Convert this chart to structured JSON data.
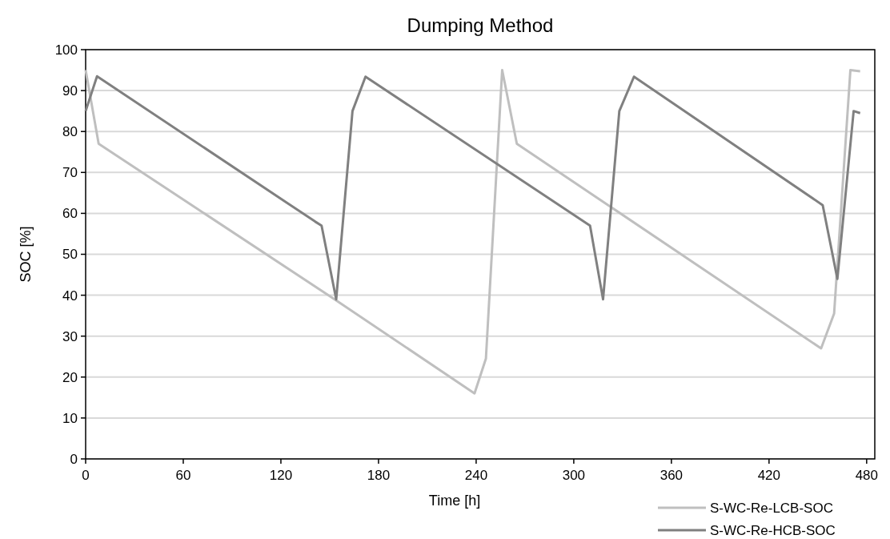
{
  "chart_data": {
    "type": "line",
    "title": "Dumping Method",
    "xlabel": "Time [h]",
    "ylabel": "SOC [%]",
    "xlim": [
      0,
      485
    ],
    "xticks": [
      0,
      60,
      120,
      180,
      240,
      300,
      360,
      420,
      480
    ],
    "ylim": [
      0,
      100
    ],
    "yticks": [
      0,
      10,
      20,
      30,
      40,
      50,
      60,
      70,
      80,
      90,
      100
    ],
    "grid": "y",
    "legend": "bottom right",
    "marker": "none",
    "line_style": "solid",
    "series": [
      {
        "name": "S-WC-Re-LCB-SOC",
        "color": "#bfbfbf",
        "x": [
          0,
          8,
          153,
          239,
          246,
          256,
          265,
          452,
          460,
          470,
          476
        ],
        "values": [
          95,
          77,
          39,
          16,
          24.5,
          95,
          77,
          27,
          35.5,
          95,
          94.7
        ]
      },
      {
        "name": "S-WC-Re-HCB-SOC",
        "color": "#808080",
        "x": [
          0,
          7,
          141,
          145,
          154,
          164,
          172,
          310,
          318,
          328,
          337,
          453,
          462,
          472,
          476
        ],
        "values": [
          85,
          93.5,
          58,
          57,
          39,
          85,
          93.4,
          57,
          39,
          85,
          93.4,
          62,
          44,
          85,
          84.5
        ]
      }
    ]
  }
}
